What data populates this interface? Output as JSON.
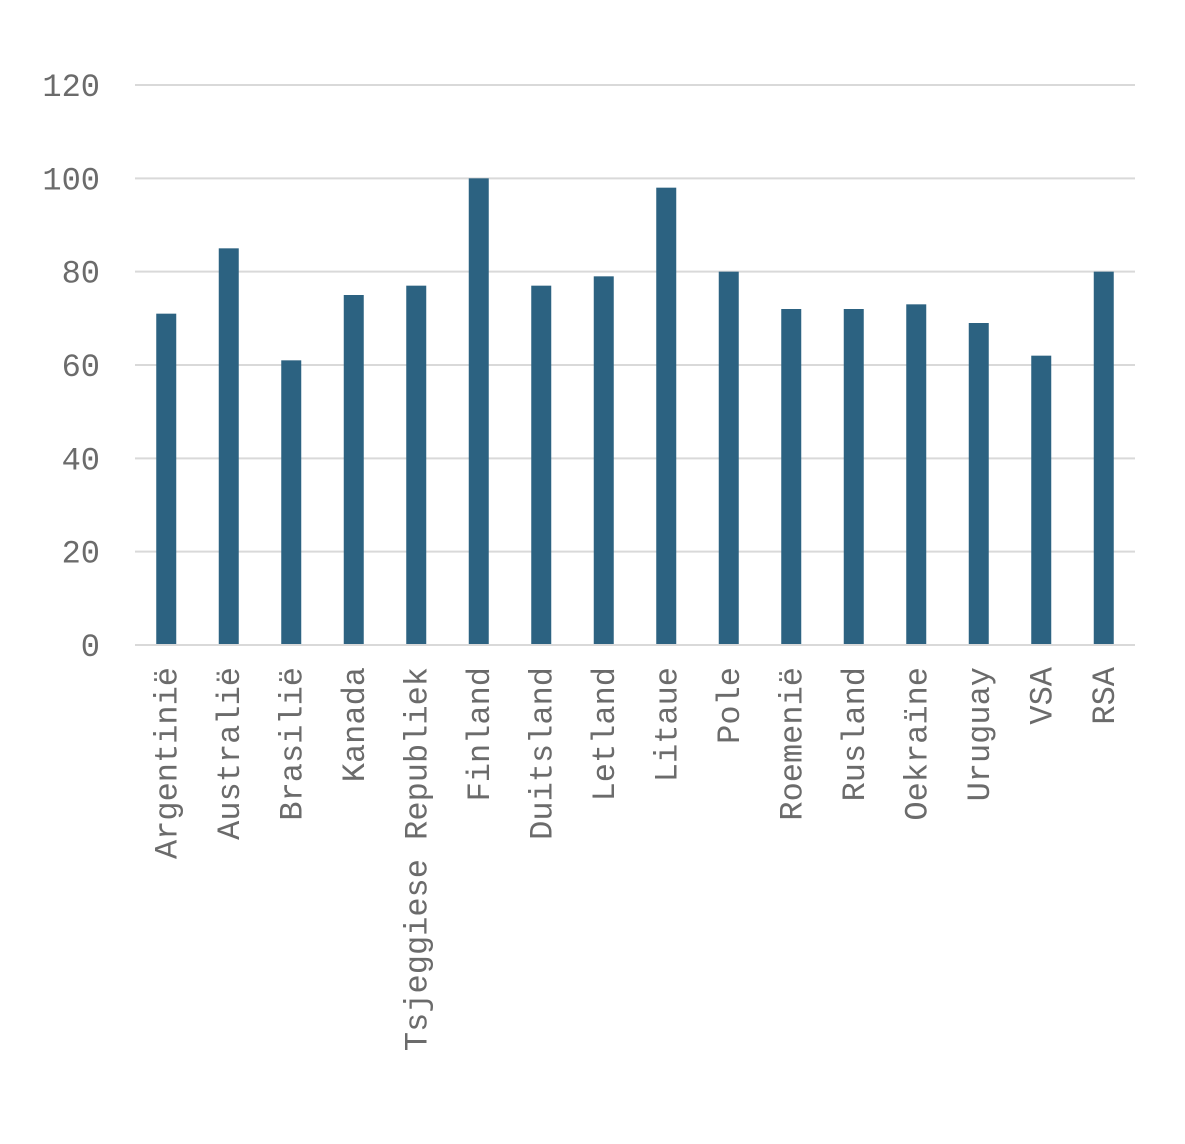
{
  "chart_data": {
    "type": "bar",
    "title": "",
    "xlabel": "",
    "ylabel": "",
    "ylim": [
      0,
      120
    ],
    "yticks": [
      0,
      20,
      40,
      60,
      80,
      100,
      120
    ],
    "grid": true,
    "legend": "none",
    "bar_color": "#2c6281",
    "categories": [
      "Argentinië",
      "Australië",
      "Brasilië",
      "Kanada",
      "Tsjeggiese Republiek",
      "Finland",
      "Duitsland",
      "Letland",
      "Litaue",
      "Pole",
      "Roemenië",
      "Rusland",
      "Oekraïne",
      "Uruguay",
      "VSA",
      "RSA"
    ],
    "values": [
      71,
      85,
      61,
      75,
      77,
      100,
      77,
      79,
      98,
      80,
      72,
      72,
      73,
      69,
      62,
      80
    ]
  }
}
